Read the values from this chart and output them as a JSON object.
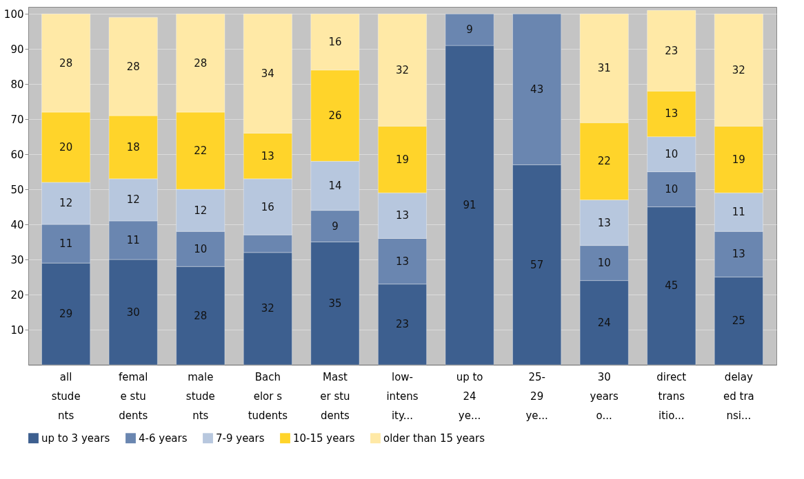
{
  "chart_data": {
    "type": "bar",
    "stacked": true,
    "categories": [
      "all\nstude\nnts",
      "femal\ne stu\ndents",
      "male\nstude\nnts",
      "Bach\nelor s\ntudents",
      "Mast\ner stu\ndents",
      "low-\nintens\nity...",
      "up to\n24\nye...",
      "25-\n29\nye...",
      "30\nyears\no...",
      "direct\ntrans\nitio...",
      "delay\ned tra\nnsi..."
    ],
    "series": [
      {
        "name": "up to 3 years",
        "color": "#3d5f8f",
        "values": [
          29,
          30,
          28,
          32,
          35,
          23,
          91,
          57,
          24,
          45,
          25
        ],
        "value_labels": [
          "29",
          "30",
          "28",
          "32",
          "35",
          "23",
          "91",
          "57",
          "24",
          "45",
          "25"
        ]
      },
      {
        "name": "4-6 years",
        "color": "#6a86b0",
        "values": [
          11,
          11,
          10,
          5,
          9,
          13,
          9,
          43,
          10,
          10,
          13
        ],
        "value_labels": [
          "11",
          "11",
          "10",
          null,
          "9",
          "13",
          "9",
          "43",
          "10",
          "10",
          "13"
        ]
      },
      {
        "name": "7-9 years",
        "color": "#b7c7de",
        "values": [
          12,
          12,
          12,
          16,
          14,
          13,
          null,
          null,
          13,
          10,
          11
        ],
        "value_labels": [
          "12",
          "12",
          "12",
          "16",
          "14",
          "13",
          null,
          null,
          "13",
          "10",
          "11"
        ]
      },
      {
        "name": "10-15 years",
        "color": "#ffd42a",
        "values": [
          20,
          18,
          22,
          13,
          26,
          19,
          null,
          null,
          22,
          13,
          19
        ],
        "value_labels": [
          "20",
          "18",
          "22",
          "13",
          "26",
          "19",
          null,
          null,
          "22",
          "13",
          "19"
        ]
      },
      {
        "name": "older than 15 years",
        "color": "#ffe9a6",
        "values": [
          28,
          28,
          28,
          34,
          16,
          32,
          null,
          null,
          31,
          23,
          32
        ],
        "value_labels": [
          "28",
          "28",
          "28",
          "34",
          "16",
          "32",
          null,
          null,
          "31",
          "23",
          "32"
        ]
      }
    ],
    "ylim": [
      0,
      102
    ],
    "yticks": [
      10,
      20,
      30,
      40,
      50,
      60,
      70,
      80,
      90,
      100
    ],
    "grid": "y",
    "legend": "bottom"
  }
}
